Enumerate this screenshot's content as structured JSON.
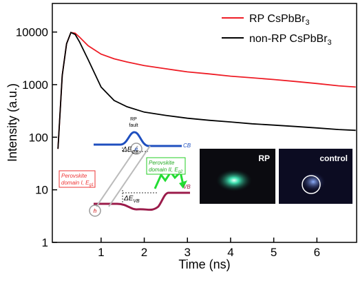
{
  "chart_data": {
    "type": "line",
    "log_y": true,
    "x_label": "Time (ns)",
    "y_label": "Intensity (a.u.)",
    "x": [
      0,
      0.1,
      0.2,
      0.3,
      0.4,
      0.5,
      0.7,
      1,
      1.3,
      1.6,
      2,
      2.5,
      3,
      3.5,
      4,
      4.5,
      5,
      5.5,
      6,
      6.5,
      6.9
    ],
    "series": [
      {
        "name": "RP CsPbBr3",
        "color": "#ee1c25",
        "values": [
          60,
          1500,
          6000,
          9800,
          9500,
          8000,
          5500,
          3800,
          3100,
          2700,
          2300,
          2000,
          1750,
          1600,
          1450,
          1350,
          1250,
          1150,
          1050,
          950,
          900
        ]
      },
      {
        "name": "non-RP CsPbBr3",
        "color": "#000000",
        "values": [
          60,
          1500,
          6000,
          9800,
          9000,
          6500,
          3000,
          900,
          500,
          380,
          300,
          260,
          230,
          210,
          195,
          180,
          170,
          160,
          150,
          140,
          135
        ]
      }
    ],
    "xlim": [
      -0.13,
      6.92
    ],
    "xticks": [
      1,
      2,
      3,
      4,
      5,
      6
    ],
    "ylim": [
      1,
      35000
    ],
    "yticks": [
      1,
      10,
      100,
      1000,
      10000
    ],
    "legend": "upper right",
    "inset": {
      "rp_fault": [
        "RP",
        "fault"
      ],
      "cb": "CB",
      "vb": "VB",
      "de_cb": {
        "main": "ΔE",
        "sub": "CB"
      },
      "de_vb": {
        "main": "ΔE",
        "sub": "VB"
      },
      "domain1": {
        "lines": [
          "Perovskite",
          "domain I, E"
        ],
        "sub": "g1"
      },
      "domain2": {
        "lines": [
          "Perovskite",
          "domain II, E"
        ],
        "sub": "g2"
      },
      "electron": "e",
      "hole": "h",
      "photo_rp": "RP",
      "photo_control": "control"
    }
  }
}
